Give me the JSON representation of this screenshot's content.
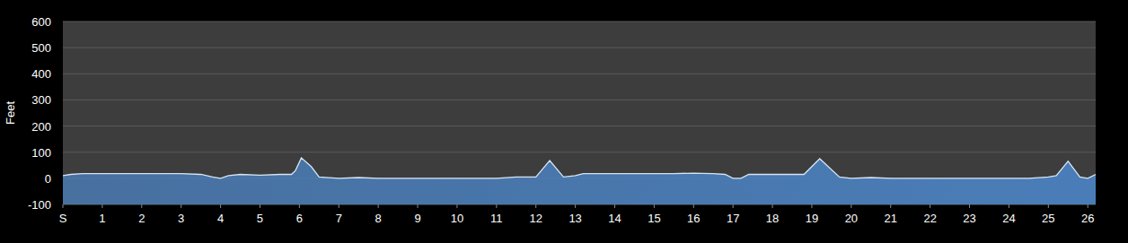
{
  "chart_data": {
    "type": "area",
    "y_label": "Feet",
    "x": [
      0,
      0.2,
      0.5,
      1,
      1.5,
      2,
      2.5,
      3,
      3.5,
      3.8,
      4.0,
      4.2,
      4.5,
      5,
      5.5,
      5.8,
      5.9,
      6.05,
      6.3,
      6.5,
      7,
      7.5,
      8,
      8.5,
      9,
      9.5,
      10,
      10.5,
      11,
      11.5,
      12,
      12.35,
      12.7,
      13,
      13.2,
      13.5,
      14,
      14.5,
      15,
      15.5,
      16,
      16.5,
      16.8,
      17.0,
      17.2,
      17.4,
      17.8,
      18.3,
      18.8,
      19.2,
      19.7,
      20,
      20.5,
      21,
      21.5,
      22,
      22.5,
      23,
      23.5,
      24,
      24.5,
      25,
      25.2,
      25.5,
      25.8,
      26,
      26.2
    ],
    "values": [
      10,
      15,
      18,
      18,
      18,
      18,
      18,
      18,
      15,
      5,
      0,
      10,
      15,
      12,
      15,
      15,
      30,
      78,
      45,
      5,
      0,
      3,
      0,
      0,
      0,
      0,
      0,
      0,
      0,
      5,
      5,
      68,
      5,
      10,
      18,
      18,
      18,
      18,
      18,
      18,
      20,
      18,
      15,
      0,
      0,
      15,
      15,
      15,
      15,
      75,
      5,
      0,
      3,
      0,
      0,
      0,
      0,
      0,
      0,
      0,
      0,
      5,
      10,
      65,
      5,
      0,
      15
    ],
    "color": "#4a7db8",
    "xlim": [
      0,
      26.2
    ],
    "xticks": [
      {
        "value": 0,
        "label": "S"
      },
      1,
      2,
      3,
      4,
      5,
      6,
      7,
      8,
      9,
      10,
      11,
      12,
      13,
      14,
      15,
      16,
      17,
      18,
      19,
      20,
      21,
      22,
      23,
      24,
      25,
      26
    ],
    "ylim": [
      -100,
      600
    ],
    "yticks": [
      -100,
      0,
      100,
      200,
      300,
      400,
      500,
      600
    ],
    "grid": true
  }
}
